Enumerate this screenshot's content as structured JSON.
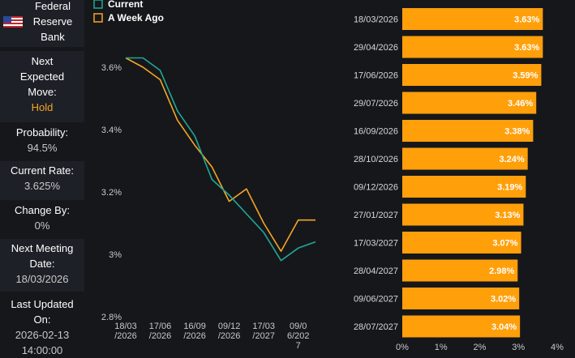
{
  "bank": {
    "name_line1": "Federal",
    "name_line2": "Reserve",
    "name_line3": "Bank",
    "flag": "us-flag-icon"
  },
  "sidebar": {
    "next_move_label_1": "Next",
    "next_move_label_2": "Expected",
    "next_move_label_3": "Move:",
    "next_move_value": "Hold",
    "probability_label": "Probability:",
    "probability_value": "94.5%",
    "current_rate_label": "Current Rate:",
    "current_rate_value": "3.625%",
    "change_by_label": "Change By:",
    "change_by_value": "0%",
    "next_meeting_label_1": "Next Meeting",
    "next_meeting_label_2": "Date:",
    "next_meeting_value": "18/03/2026",
    "last_updated_label_1": "Last Updated",
    "last_updated_label_2": "On:",
    "last_updated_value_1": "2026-02-13",
    "last_updated_value_2": "14:00:00"
  },
  "colors": {
    "current": "#1fa897",
    "week_ago": "#f5a623",
    "bar": "#ff9f0a"
  },
  "chart_data": [
    {
      "type": "line",
      "title": "",
      "legend": [
        "Current",
        "A Week Ago"
      ],
      "legend_position": "top-left",
      "ylim": [
        2.8,
        3.65
      ],
      "y_ticks": [
        {
          "value": 3.6,
          "label": "3.6%"
        },
        {
          "value": 3.4,
          "label": "3.4%"
        },
        {
          "value": 3.2,
          "label": "3.2%"
        },
        {
          "value": 3.0,
          "label": "3%"
        },
        {
          "value": 2.8,
          "label": "2.8%"
        }
      ],
      "x_tick_labels": [
        {
          "index": 0,
          "line1": "18/03",
          "line2": "/2026"
        },
        {
          "index": 2,
          "line1": "17/06",
          "line2": "/2026"
        },
        {
          "index": 4,
          "line1": "16/09",
          "line2": "/2026"
        },
        {
          "index": 6,
          "line1": "09/12",
          "line2": "/2026"
        },
        {
          "index": 8,
          "line1": "17/03",
          "line2": "/2027"
        },
        {
          "index": 10,
          "line1": "09/0",
          "line2": "6/202",
          "line3": "7"
        }
      ],
      "categories": [
        "18/03/2026",
        "29/04/2026",
        "17/06/2026",
        "29/07/2026",
        "16/09/2026",
        "28/10/2026",
        "09/12/2026",
        "27/01/2027",
        "17/03/2027",
        "28/04/2027",
        "09/06/2027",
        "28/07/2027"
      ],
      "series": [
        {
          "name": "Current",
          "values": [
            3.63,
            3.63,
            3.59,
            3.46,
            3.38,
            3.24,
            3.19,
            3.13,
            3.07,
            2.98,
            3.02,
            3.04
          ]
        },
        {
          "name": "A Week Ago",
          "values": [
            3.63,
            3.6,
            3.56,
            3.43,
            3.35,
            3.28,
            3.17,
            3.21,
            3.1,
            3.01,
            3.11,
            3.11
          ]
        }
      ]
    },
    {
      "type": "bar",
      "orientation": "horizontal",
      "title": "",
      "xlim": [
        0,
        4
      ],
      "x_ticks": [
        "0%",
        "1%",
        "2%",
        "3%",
        "4%"
      ],
      "categories": [
        "18/03/2026",
        "29/04/2026",
        "17/06/2026",
        "29/07/2026",
        "16/09/2026",
        "28/10/2026",
        "09/12/2026",
        "27/01/2027",
        "17/03/2027",
        "28/04/2027",
        "09/06/2027",
        "28/07/2027"
      ],
      "values": [
        3.63,
        3.63,
        3.59,
        3.46,
        3.38,
        3.24,
        3.19,
        3.13,
        3.07,
        2.98,
        3.02,
        3.04
      ],
      "value_labels": [
        "3.63%",
        "3.63%",
        "3.59%",
        "3.46%",
        "3.38%",
        "3.24%",
        "3.19%",
        "3.13%",
        "3.07%",
        "2.98%",
        "3.02%",
        "3.04%"
      ]
    }
  ]
}
